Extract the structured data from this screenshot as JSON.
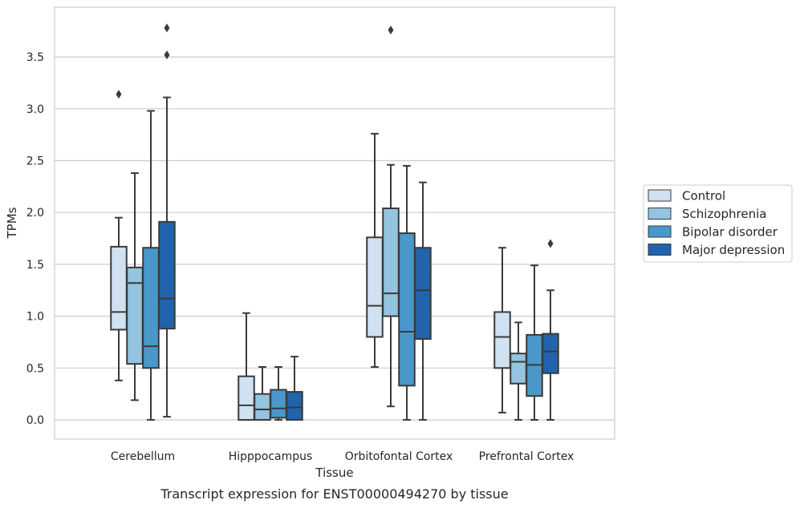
{
  "chart_data": {
    "type": "box",
    "xlabel": "Tissue",
    "ylabel": "TPMs",
    "caption": "Transcript expression for ENST00000494270 by tissue",
    "ylim": [
      -0.18,
      3.95
    ],
    "yticks": [
      0.0,
      0.5,
      1.0,
      1.5,
      2.0,
      2.5,
      3.0,
      3.5
    ],
    "ytick_labels": [
      "0.0",
      "0.5",
      "1.0",
      "1.5",
      "2.0",
      "2.5",
      "3.0",
      "3.5"
    ],
    "grid": "horizontal",
    "legend_position": "right",
    "categories": [
      "Cerebellum",
      "Hipppocampus",
      "Orbitofontal Cortex",
      "Prefrontal Cortex"
    ],
    "series": [
      {
        "name": "Control",
        "color": "#d0e1f2",
        "boxes": [
          {
            "min": 0.38,
            "q1": 0.87,
            "median": 1.04,
            "q3": 1.67,
            "max": 1.95,
            "outliers": [
              3.14
            ]
          },
          {
            "min": 0.0,
            "q1": 0.0,
            "median": 0.14,
            "q3": 0.42,
            "max": 1.03,
            "outliers": []
          },
          {
            "min": 0.51,
            "q1": 0.8,
            "median": 1.1,
            "q3": 1.76,
            "max": 2.76,
            "outliers": []
          },
          {
            "min": 0.07,
            "q1": 0.5,
            "median": 0.8,
            "q3": 1.04,
            "max": 1.66,
            "outliers": []
          }
        ]
      },
      {
        "name": "Schizophrenia",
        "color": "#94c4df",
        "boxes": [
          {
            "min": 0.19,
            "q1": 0.54,
            "median": 1.32,
            "q3": 1.47,
            "max": 2.38,
            "outliers": []
          },
          {
            "min": 0.0,
            "q1": 0.0,
            "median": 0.1,
            "q3": 0.25,
            "max": 0.51,
            "outliers": []
          },
          {
            "min": 0.13,
            "q1": 1.0,
            "median": 1.22,
            "q3": 2.04,
            "max": 2.46,
            "outliers": [
              3.76
            ]
          },
          {
            "min": 0.0,
            "q1": 0.35,
            "median": 0.56,
            "q3": 0.64,
            "max": 0.94,
            "outliers": []
          }
        ]
      },
      {
        "name": "Bipolar disorder",
        "color": "#4a98c9",
        "boxes": [
          {
            "min": 0.0,
            "q1": 0.5,
            "median": 0.71,
            "q3": 1.66,
            "max": 2.98,
            "outliers": []
          },
          {
            "min": 0.0,
            "q1": 0.02,
            "median": 0.11,
            "q3": 0.29,
            "max": 0.51,
            "outliers": []
          },
          {
            "min": 0.0,
            "q1": 0.33,
            "median": 0.85,
            "q3": 1.8,
            "max": 2.45,
            "outliers": []
          },
          {
            "min": 0.0,
            "q1": 0.23,
            "median": 0.53,
            "q3": 0.82,
            "max": 1.49,
            "outliers": []
          }
        ]
      },
      {
        "name": "Major depression",
        "color": "#2164ab",
        "boxes": [
          {
            "min": 0.03,
            "q1": 0.88,
            "median": 1.17,
            "q3": 1.91,
            "max": 3.11,
            "outliers": [
              3.52,
              3.78
            ]
          },
          {
            "min": 0.0,
            "q1": 0.0,
            "median": 0.12,
            "q3": 0.27,
            "max": 0.61,
            "outliers": []
          },
          {
            "min": 0.0,
            "q1": 0.78,
            "median": 1.25,
            "q3": 1.66,
            "max": 2.29,
            "outliers": []
          },
          {
            "min": 0.0,
            "q1": 0.45,
            "median": 0.66,
            "q3": 0.83,
            "max": 1.25,
            "outliers": [
              1.7
            ]
          }
        ]
      }
    ]
  }
}
